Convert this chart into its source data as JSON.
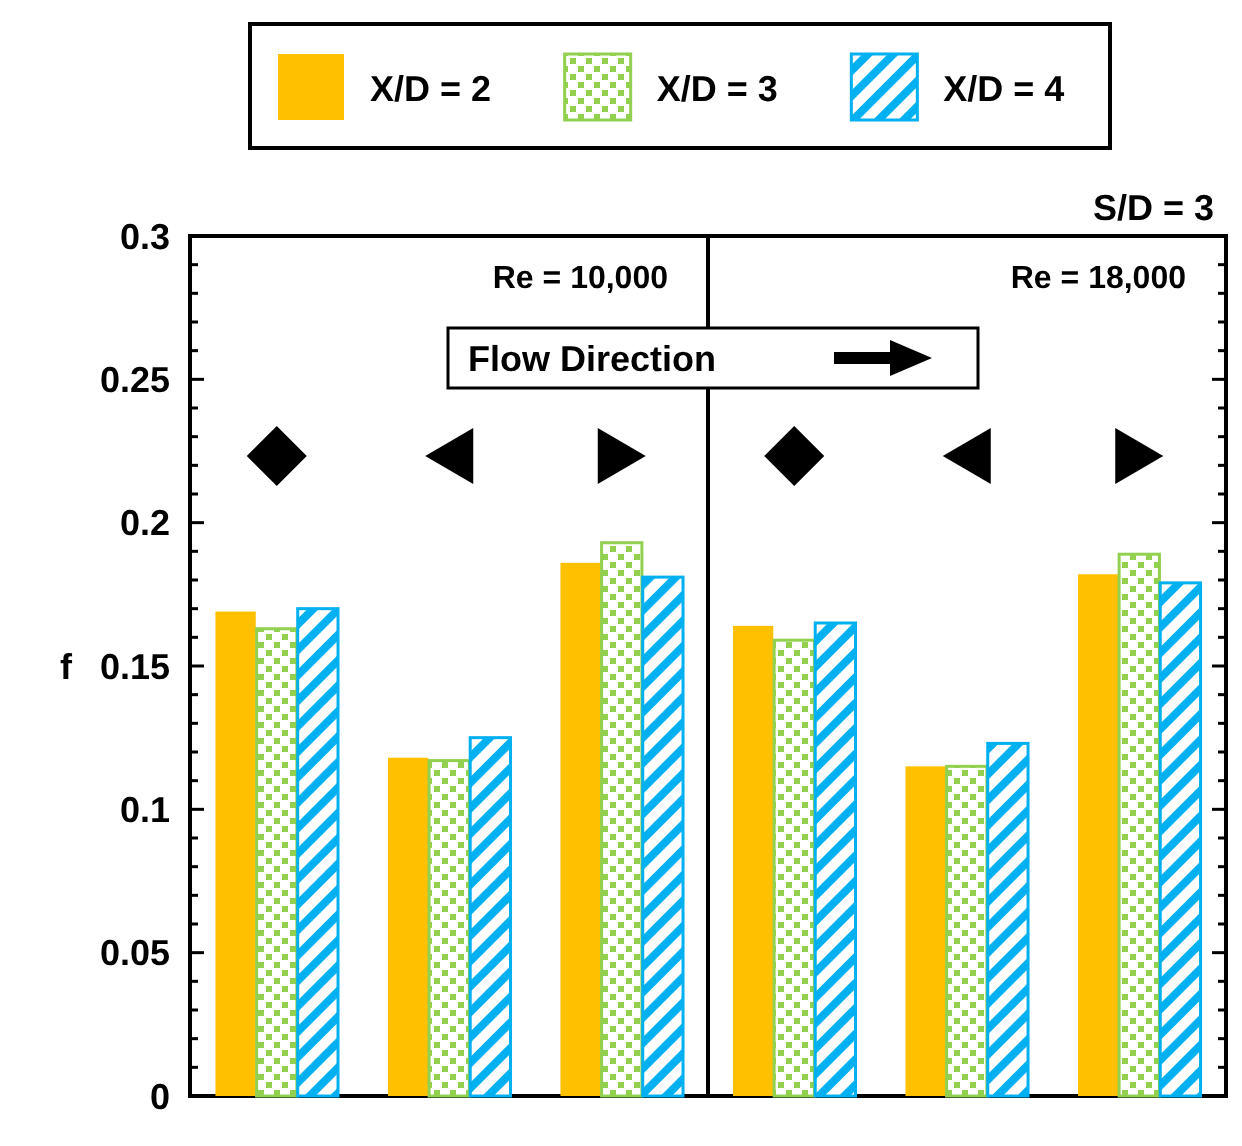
{
  "chart_data": {
    "type": "bar",
    "categories": [
      null,
      null,
      null,
      null,
      null,
      null
    ],
    "ylabel": "f",
    "ylim": [
      0,
      0.3
    ],
    "yticks": [
      0,
      {
        "value": 0.01,
        "label": null
      },
      {
        "value": 0.02,
        "label": null
      },
      {
        "value": 0.03,
        "label": null
      },
      {
        "value": 0.04,
        "label": null
      },
      0.05,
      {
        "value": 0.06,
        "label": null
      },
      {
        "value": 0.07,
        "label": null
      },
      {
        "value": 0.08,
        "label": null
      },
      {
        "value": 0.09,
        "label": null
      },
      0.1,
      {
        "value": 0.11,
        "label": null
      },
      {
        "value": 0.12,
        "label": null
      },
      {
        "value": 0.13,
        "label": null
      },
      {
        "value": 0.14,
        "label": null
      },
      0.15,
      {
        "value": 0.16,
        "label": null
      },
      {
        "value": 0.17,
        "label": null
      },
      {
        "value": 0.18,
        "label": null
      },
      {
        "value": 0.19,
        "label": null
      },
      0.2,
      {
        "value": 0.21,
        "label": null
      },
      {
        "value": 0.22,
        "label": null
      },
      {
        "value": 0.23,
        "label": null
      },
      {
        "value": 0.24,
        "label": null
      },
      0.25,
      {
        "value": 0.26,
        "label": null
      },
      {
        "value": 0.27,
        "label": null
      },
      {
        "value": 0.28,
        "label": null
      },
      {
        "value": 0.29,
        "label": null
      },
      0.3
    ],
    "legend": "top",
    "annotations": [
      "Re = 10,000",
      "Re = 18,000",
      "Flow Direction",
      "S/D = 3"
    ],
    "series": [
      {
        "name": "X/D = 2",
        "color": "#ffc000",
        "values": [
          0.169,
          0.118,
          0.186,
          0.164,
          0.115,
          0.182
        ]
      },
      {
        "name": "X/D = 3",
        "color": "#92d050",
        "values": [
          0.163,
          0.117,
          0.193,
          0.159,
          0.115,
          0.189
        ]
      },
      {
        "name": "X/D = 4",
        "color": "#00b0f0",
        "values": [
          0.17,
          0.125,
          0.181,
          0.165,
          0.123,
          0.179
        ]
      }
    ]
  }
}
